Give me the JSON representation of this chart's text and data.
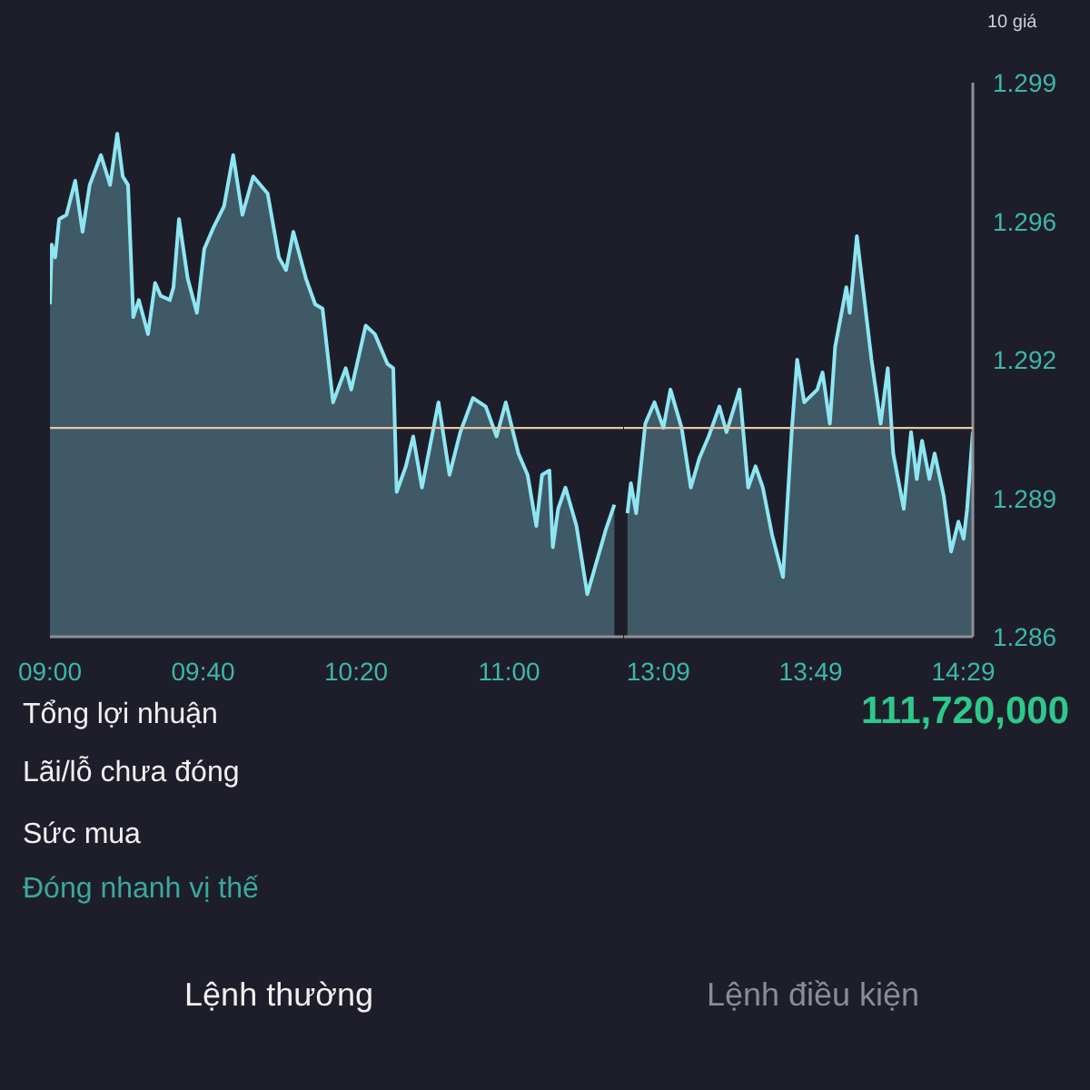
{
  "chart_data": [
    {
      "type": "area",
      "color": "#8ee6f2",
      "x": [
        9,
        9.008,
        9.023,
        9.04,
        9.072,
        9.11,
        9.142,
        9.173,
        9.222,
        9.262,
        9.293,
        9.317,
        9.34,
        9.363,
        9.387,
        9.427,
        9.458,
        9.482,
        9.522,
        9.538,
        9.562,
        9.6,
        9.64,
        9.672,
        9.712,
        9.758,
        9.798,
        9.838,
        9.885,
        9.948,
        9.997,
        10.028,
        10.06,
        10.115,
        10.155,
        10.187,
        10.233,
        10.288,
        10.312,
        10.375,
        10.415,
        10.47,
        10.495,
        10.51,
        10.55,
        10.582,
        10.62,
        10.692,
        10.74,
        10.787,
        10.842,
        10.898,
        10.945,
        10.985,
        11.04,
        11.08,
        11.118,
        11.143,
        11.175,
        11.19,
        11.213,
        11.245,
        11.293,
        11.34,
        11.42,
        11.458
      ],
      "values": [
        1.2938,
        1.2952,
        1.2949,
        1.2958,
        1.2959,
        1.2967,
        1.2955,
        1.2966,
        1.2973,
        1.2966,
        1.2978,
        1.2968,
        1.2966,
        1.2935,
        1.2939,
        1.2931,
        1.2943,
        1.294,
        1.2939,
        1.2942,
        1.2958,
        1.2944,
        1.2936,
        1.2951,
        1.2956,
        1.2961,
        1.2973,
        1.2959,
        1.2968,
        1.2964,
        1.2949,
        1.2946,
        1.2955,
        1.2944,
        1.2938,
        1.2937,
        1.2915,
        1.2923,
        1.2918,
        1.2933,
        1.2931,
        1.2924,
        1.2923,
        1.2894,
        1.29,
        1.2907,
        1.2895,
        1.2915,
        1.2898,
        1.2908,
        1.2916,
        1.2914,
        1.2907,
        1.2915,
        1.2903,
        1.2898,
        1.2886,
        1.2898,
        1.2899,
        1.2881,
        1.289,
        1.2895,
        1.2886,
        1.287,
        1.2885,
        1.2891
      ],
      "xlim": [
        9,
        11.5
      ],
      "xticks": [
        {
          "value": 9,
          "label": "09:00"
        },
        {
          "value": 9.6667,
          "label": "09:40"
        },
        {
          "value": 10.3333,
          "label": "10:20"
        },
        {
          "value": 11,
          "label": "11:00"
        }
      ],
      "ylim": [
        1.286,
        1.299
      ],
      "tick_labels": "x",
      "ref_lines": [
        {
          "axis": "y",
          "value": 1.2909,
          "color": "#e6c7a3"
        }
      ],
      "grid": false,
      "annotations": [
        "Tổng lợi nhuận",
        "111,720,000",
        "Lãi/lỗ chưa đóng",
        "Sức mua",
        "Đóng nhanh vị thế",
        "Lệnh thường",
        "Lệnh điều kiện"
      ]
    },
    {
      "type": "area",
      "color": "#8ee6f2",
      "x": [
        13.015,
        13.03,
        13.053,
        13.093,
        13.133,
        13.172,
        13.203,
        13.252,
        13.292,
        13.33,
        13.37,
        13.417,
        13.448,
        13.505,
        13.543,
        13.575,
        13.607,
        13.647,
        13.695,
        13.733,
        13.757,
        13.788,
        13.845,
        13.868,
        13.9,
        13.923,
        13.972,
        13.987,
        14.018,
        14.082,
        14.122,
        14.153,
        14.177,
        14.223,
        14.255,
        14.28,
        14.303,
        14.335,
        14.358,
        14.398,
        14.43,
        14.462,
        14.485,
        14.5,
        14.525
      ],
      "values": [
        1.2889,
        1.2896,
        1.2889,
        1.291,
        1.2915,
        1.2909,
        1.2918,
        1.2909,
        1.2895,
        1.2902,
        1.2907,
        1.2914,
        1.2908,
        1.2918,
        1.2895,
        1.29,
        1.2895,
        1.2884,
        1.2874,
        1.2908,
        1.2925,
        1.2915,
        1.2918,
        1.2922,
        1.291,
        1.2928,
        1.2942,
        1.2936,
        1.2954,
        1.2925,
        1.291,
        1.2923,
        1.2903,
        1.289,
        1.2908,
        1.2897,
        1.2906,
        1.2897,
        1.2903,
        1.2893,
        1.288,
        1.2887,
        1.2883,
        1.289,
        1.2908
      ],
      "xlim": [
        13,
        14.525
      ],
      "xticks": [
        {
          "value": 13.15,
          "label": "13:09"
        },
        {
          "value": 13.8167,
          "label": "13:49"
        },
        {
          "value": 14.4833,
          "label": "14:29"
        }
      ],
      "ylim": [
        1.286,
        1.299
      ],
      "yticks": [
        1.286,
        {
          "value": 1.28925,
          "label": "1.289"
        },
        {
          "value": 1.2925,
          "label": "1.292"
        },
        {
          "value": 1.29575,
          "label": "1.296"
        },
        1.299
      ],
      "ref_lines": [
        {
          "axis": "y",
          "value": 1.2909,
          "color": "#e6c7a3"
        }
      ],
      "grid": false,
      "annotations": [
        "10 giá"
      ]
    }
  ]
}
